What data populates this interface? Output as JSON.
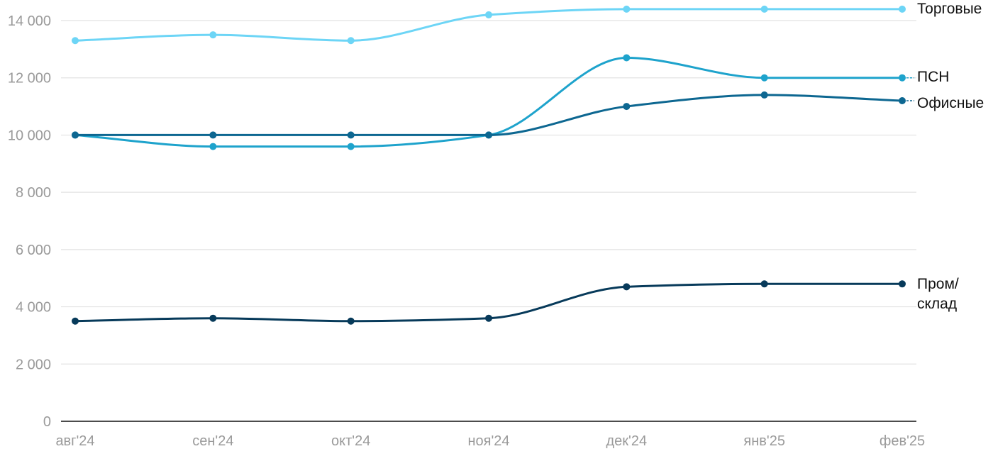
{
  "chart_data": {
    "type": "line",
    "title": "",
    "xlabel": "",
    "ylabel": "",
    "x": [
      "авг'24",
      "сен'24",
      "окт'24",
      "ноя'24",
      "дек'24",
      "янв'25",
      "фев'25"
    ],
    "ylim": [
      0,
      14000
    ],
    "yticks": [
      0,
      2000,
      4000,
      6000,
      8000,
      10000,
      12000,
      14000
    ],
    "ytick_labels": [
      "0",
      "2 000",
      "4 000",
      "6 000",
      "8 000",
      "10 000",
      "12 000",
      "14 000"
    ],
    "grid": true,
    "legend": "inline labels at line ends (right)",
    "series": [
      {
        "name": "Торговые",
        "color": "#6dd5f6",
        "values": [
          13300,
          13500,
          13300,
          14200,
          14400,
          14400,
          14400
        ]
      },
      {
        "name": "ПСН",
        "color": "#1ea3cc",
        "values": [
          10000,
          9600,
          9600,
          10000,
          12700,
          12000,
          12000
        ]
      },
      {
        "name": "Офисные",
        "color": "#0d6791",
        "values": [
          10000,
          10000,
          10000,
          10000,
          11000,
          11400,
          11200
        ]
      },
      {
        "name": "Пром/\nсклад",
        "color": "#073a5a",
        "values": [
          3500,
          3600,
          3500,
          3600,
          4700,
          4800,
          4800
        ]
      }
    ]
  }
}
